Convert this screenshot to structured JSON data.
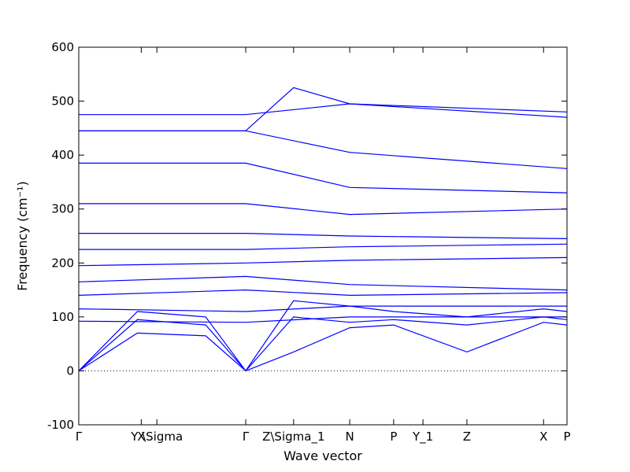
{
  "chart_data": {
    "type": "line",
    "title": "",
    "xlabel": "Wave vector",
    "ylabel": "Frequency (cm⁻¹)",
    "ylim": [
      -100,
      600
    ],
    "yticks": [
      -100,
      0,
      100,
      200,
      300,
      400,
      500,
      600
    ],
    "xticks": [
      {
        "label": "Γ",
        "x": 0.0
      },
      {
        "label": "X",
        "x": 0.128
      },
      {
        "label": "Y \\Sigma",
        "x": 0.16
      },
      {
        "label": "Γ",
        "x": 0.342
      },
      {
        "label": "Z\\Sigma_1",
        "x": 0.44
      },
      {
        "label": "N",
        "x": 0.555
      },
      {
        "label": "P",
        "x": 0.645
      },
      {
        "label": "Y_1",
        "x": 0.705
      },
      {
        "label": "Z",
        "x": 0.795
      },
      {
        "label": "X",
        "x": 0.952
      },
      {
        "label": "P",
        "x": 1.0
      }
    ],
    "zero_line": true,
    "line_color": "#0000ff",
    "series": [
      {
        "x": [
          0,
          0.12,
          0.26,
          0.342,
          0.44,
          0.555,
          0.645,
          0.795,
          0.952,
          1.0
        ],
        "values": [
          0,
          70,
          65,
          0,
          35,
          80,
          85,
          35,
          90,
          85
        ]
      },
      {
        "x": [
          0,
          0.12,
          0.26,
          0.342,
          0.44,
          0.555,
          0.645,
          0.795,
          0.952,
          1.0
        ],
        "values": [
          0,
          95,
          85,
          0,
          100,
          90,
          95,
          85,
          100,
          95
        ]
      },
      {
        "x": [
          0,
          0.12,
          0.26,
          0.342,
          0.44,
          0.555,
          0.645,
          0.795,
          0.952,
          1.0
        ],
        "values": [
          0,
          110,
          100,
          0,
          130,
          120,
          110,
          100,
          115,
          110
        ]
      },
      {
        "x": [
          0,
          0.342,
          0.555,
          1.0
        ],
        "values": [
          92,
          90,
          100,
          100
        ]
      },
      {
        "x": [
          0,
          0.342,
          0.555,
          1.0
        ],
        "values": [
          115,
          110,
          120,
          120
        ]
      },
      {
        "x": [
          0,
          0.342,
          0.555,
          1.0
        ],
        "values": [
          140,
          150,
          140,
          145
        ]
      },
      {
        "x": [
          0,
          0.342,
          0.555,
          1.0
        ],
        "values": [
          165,
          175,
          160,
          150
        ]
      },
      {
        "x": [
          0,
          0.342,
          0.555,
          1.0
        ],
        "values": [
          195,
          200,
          205,
          210
        ]
      },
      {
        "x": [
          0,
          0.342,
          0.555,
          1.0
        ],
        "values": [
          225,
          225,
          230,
          235
        ]
      },
      {
        "x": [
          0,
          0.342,
          0.555,
          1.0
        ],
        "values": [
          255,
          255,
          250,
          245
        ]
      },
      {
        "x": [
          0,
          0.342,
          0.555,
          1.0
        ],
        "values": [
          310,
          310,
          290,
          300
        ]
      },
      {
        "x": [
          0,
          0.342,
          0.555,
          1.0
        ],
        "values": [
          385,
          385,
          340,
          330
        ]
      },
      {
        "x": [
          0,
          0.342,
          0.555,
          1.0
        ],
        "values": [
          445,
          445,
          405,
          375
        ]
      },
      {
        "x": [
          0,
          0.342,
          0.555,
          1.0
        ],
        "values": [
          475,
          475,
          495,
          480
        ]
      },
      {
        "x": [
          0,
          0.342,
          0.44,
          0.555,
          1.0
        ],
        "values": [
          445,
          445,
          525,
          495,
          470
        ]
      }
    ]
  }
}
